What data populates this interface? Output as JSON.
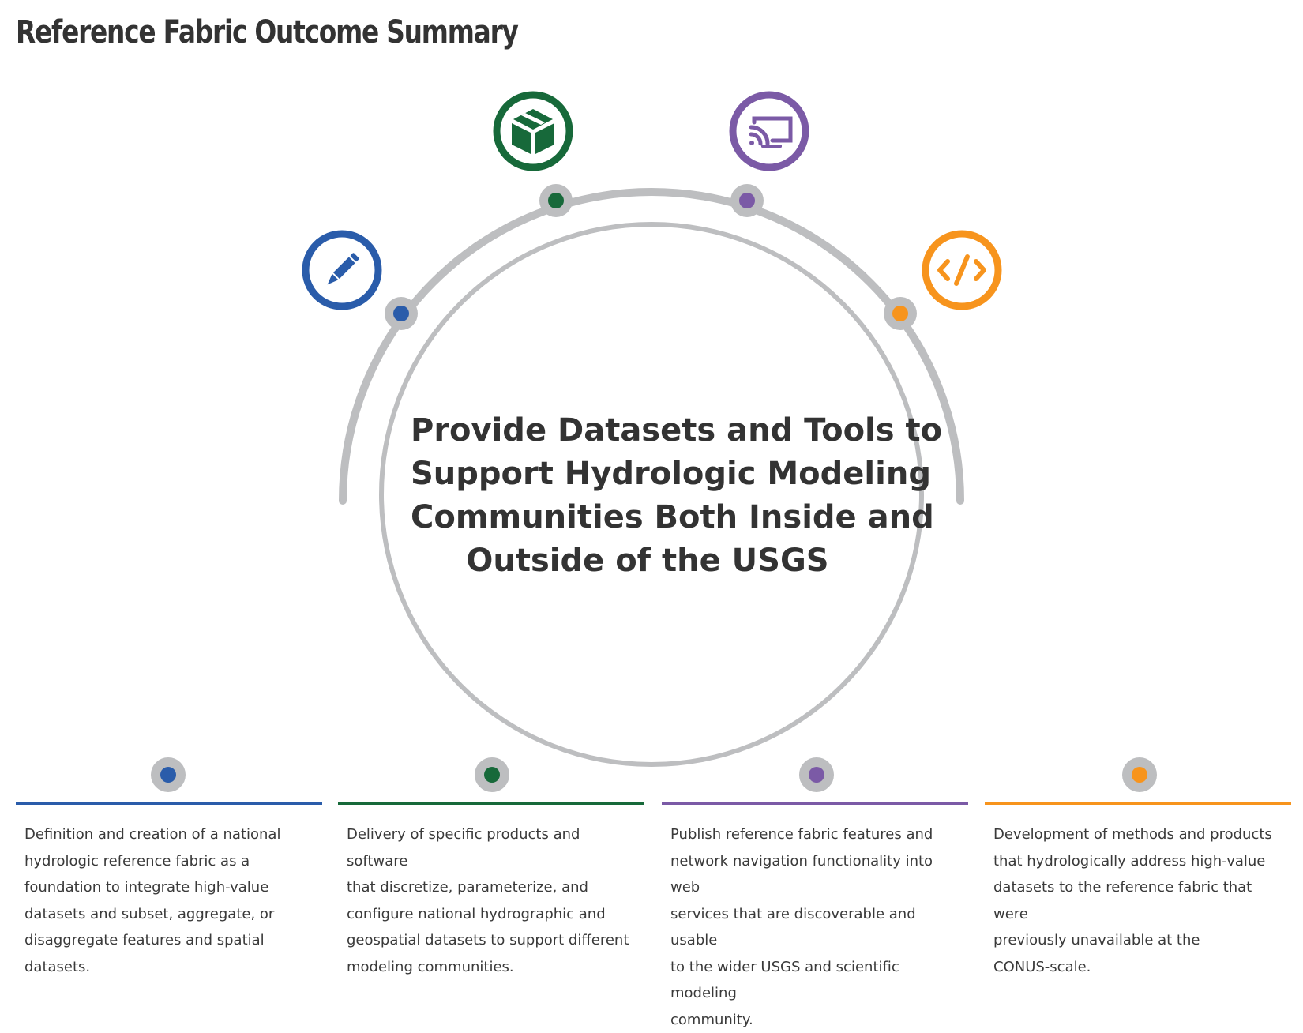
{
  "title": "Reference Fabric Outcome Summary",
  "center_lines": [
    "Provide Datasets and Tools to",
    "Support Hydrologic Modeling",
    "Communities Both Inside and",
    "Outside of the USGS"
  ],
  "colors": {
    "blue": "#2a5caa",
    "green": "#17693a",
    "purple": "#7b5aa6",
    "orange": "#f7941d",
    "gray": "#bdbec0",
    "text": "#3a3a3a"
  },
  "icons": [
    "pencil-icon",
    "box-icon",
    "cast-icon",
    "code-icon"
  ],
  "outcomes": [
    {
      "color": "#2a5caa",
      "lines": [
        "Definition and creation of a national",
        "hydrologic reference fabric as a",
        "foundation to integrate high-value",
        "datasets and subset, aggregate, or",
        "disaggregate features and spatial",
        "datasets."
      ]
    },
    {
      "color": "#17693a",
      "lines": [
        "Delivery of specific products and software",
        "that discretize, parameterize, and",
        "configure national hydrographic and",
        "geospatial datasets to support different",
        "modeling communities."
      ]
    },
    {
      "color": "#7b5aa6",
      "lines": [
        "Publish reference fabric features and",
        "network navigation functionality into web",
        "services that are discoverable and usable",
        "to the wider USGS and scientific modeling",
        "community."
      ]
    },
    {
      "color": "#f7941d",
      "lines": [
        "Development of methods and products",
        "that hydrologically address high-value",
        "datasets to the reference fabric that were",
        "previously unavailable at the",
        "CONUS-scale."
      ]
    }
  ]
}
